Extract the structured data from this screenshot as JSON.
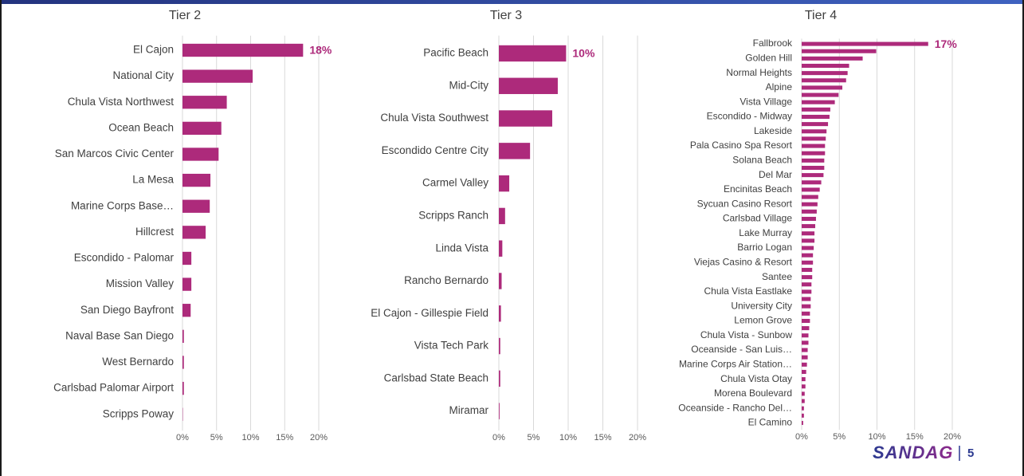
{
  "chart_data": [
    {
      "type": "bar",
      "orientation": "horizontal",
      "title": "Tier 2",
      "categories": [
        "El Cajon",
        "National City",
        "Chula Vista Northwest",
        "Ocean Beach",
        "San Marcos Civic Center",
        "La Mesa",
        "Marine Corps Base…",
        "Hillcrest",
        "Escondido - Palomar",
        "Mission Valley",
        "San Diego Bayfront",
        "Naval Base San Diego",
        "West Bernardo",
        "Carlsbad Palomar Airport",
        "Scripps Poway"
      ],
      "values": [
        17.7,
        10.3,
        6.5,
        5.7,
        5.3,
        4.1,
        4.0,
        3.4,
        1.3,
        1.3,
        1.2,
        0.2,
        0.2,
        0.2,
        0.05
      ],
      "value_labels": [
        "18%",
        null,
        null,
        null,
        null,
        null,
        null,
        null,
        null,
        null,
        null,
        null,
        null,
        null,
        null
      ],
      "color": "#ad2a7b",
      "xlim": [
        0,
        20
      ],
      "xticks": [
        {
          "value": 0,
          "label": "0%"
        },
        {
          "value": 5,
          "label": "5%"
        },
        {
          "value": 10,
          "label": "10%"
        },
        {
          "value": 15,
          "label": "15%"
        },
        {
          "value": 20,
          "label": "20%"
        }
      ],
      "grid": true
    },
    {
      "type": "bar",
      "orientation": "horizontal",
      "title": "Tier 3",
      "categories": [
        "Pacific Beach",
        "Mid-City",
        "Chula Vista Southwest",
        "Escondido Centre City",
        "Carmel Valley",
        "Scripps Ranch",
        "Linda Vista",
        "Rancho Bernardo",
        "El Cajon - Gillespie Field",
        "Vista Tech Park",
        "Carlsbad State Beach",
        "Miramar"
      ],
      "values": [
        9.7,
        8.5,
        7.7,
        4.5,
        1.5,
        0.9,
        0.5,
        0.4,
        0.3,
        0.2,
        0.2,
        0.1
      ],
      "value_labels": [
        "10%",
        null,
        null,
        null,
        null,
        null,
        null,
        null,
        null,
        null,
        null,
        null
      ],
      "color": "#ad2a7b",
      "xlim": [
        0,
        20
      ],
      "xticks": [
        {
          "value": 0,
          "label": "0%"
        },
        {
          "value": 5,
          "label": "5%"
        },
        {
          "value": 10,
          "label": "10%"
        },
        {
          "value": 15,
          "label": "15%"
        },
        {
          "value": 20,
          "label": "20%"
        }
      ],
      "grid": true
    },
    {
      "type": "bar",
      "orientation": "horizontal",
      "title": "Tier 4",
      "categories": [
        "Fallbrook",
        null,
        "Golden Hill",
        null,
        "Normal Heights",
        null,
        "Alpine",
        null,
        "Vista Village",
        null,
        "Escondido - Midway",
        null,
        "Lakeside",
        null,
        "Pala Casino Spa Resort",
        null,
        "Solana Beach",
        null,
        "Del Mar",
        null,
        "Encinitas Beach",
        null,
        "Sycuan Casino Resort",
        null,
        "Carlsbad Village",
        null,
        "Lake Murray",
        null,
        "Barrio Logan",
        null,
        "Viejas Casino & Resort",
        null,
        "Santee",
        null,
        "Chula Vista Eastlake",
        null,
        "University City",
        null,
        "Lemon Grove",
        null,
        "Chula Vista - Sunbow",
        null,
        "Oceanside - San Luis…",
        null,
        "Marine Corps Air Station…",
        null,
        "Chula Vista Otay",
        null,
        "Morena Boulevard",
        null,
        "Oceanside - Rancho Del…",
        null,
        "El Camino"
      ],
      "values": [
        16.8,
        9.9,
        8.1,
        6.3,
        6.1,
        5.9,
        5.4,
        4.9,
        4.4,
        3.8,
        3.7,
        3.5,
        3.3,
        3.2,
        3.1,
        3.1,
        3.0,
        3.0,
        2.9,
        2.6,
        2.4,
        2.2,
        2.1,
        2.0,
        1.9,
        1.8,
        1.7,
        1.7,
        1.6,
        1.5,
        1.5,
        1.4,
        1.4,
        1.3,
        1.3,
        1.2,
        1.2,
        1.1,
        1.1,
        1.0,
        0.9,
        0.9,
        0.8,
        0.8,
        0.7,
        0.6,
        0.5,
        0.5,
        0.4,
        0.4,
        0.3,
        0.3,
        0.2
      ],
      "value_labels": [
        "17%",
        null,
        null,
        null,
        null,
        null,
        null,
        null,
        null,
        null,
        null,
        null,
        null,
        null,
        null,
        null,
        null,
        null,
        null,
        null,
        null,
        null,
        null,
        null,
        null,
        null,
        null,
        null,
        null,
        null,
        null,
        null,
        null,
        null,
        null,
        null,
        null,
        null,
        null,
        null,
        null,
        null,
        null,
        null,
        null,
        null,
        null,
        null,
        null,
        null,
        null,
        null,
        null
      ],
      "color": "#ad2a7b",
      "xlim": [
        0,
        20
      ],
      "xticks": [
        {
          "value": 0,
          "label": "0%"
        },
        {
          "value": 5,
          "label": "5%"
        },
        {
          "value": 10,
          "label": "10%"
        },
        {
          "value": 15,
          "label": "15%"
        },
        {
          "value": 20,
          "label": "20%"
        }
      ],
      "grid": true
    }
  ],
  "footer": {
    "logo": "SANDAG",
    "page": "5"
  }
}
